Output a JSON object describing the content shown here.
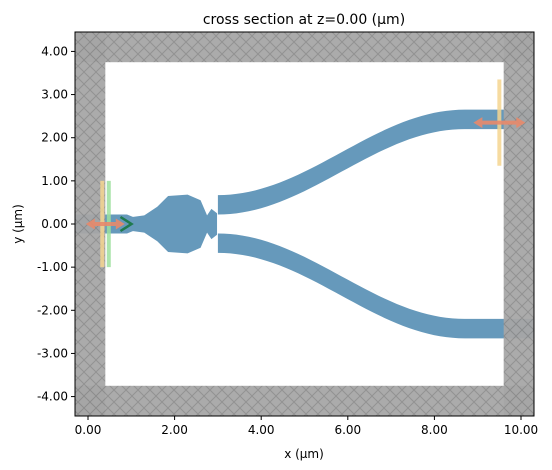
{
  "chart_data": {
    "type": "diagram",
    "title": "cross section at z=0.00 (μm)",
    "xlabel": "x (μm)",
    "ylabel": "y (μm)",
    "xlim": [
      -0.3,
      10.3
    ],
    "ylim": [
      -4.45,
      4.45
    ],
    "x_ticks": [
      {
        "value": 0,
        "label": "0.00"
      },
      {
        "value": 2,
        "label": "2.00"
      },
      {
        "value": 4,
        "label": "4.00"
      },
      {
        "value": 6,
        "label": "6.00"
      },
      {
        "value": 8,
        "label": "8.00"
      },
      {
        "value": 10,
        "label": "10.00"
      }
    ],
    "y_ticks": [
      {
        "value": 4,
        "label": "4.00"
      },
      {
        "value": 3,
        "label": "3.00"
      },
      {
        "value": 2,
        "label": "2.00"
      },
      {
        "value": 1,
        "label": "1.00"
      },
      {
        "value": 0,
        "label": "0.00"
      },
      {
        "value": -1,
        "label": "-1.00"
      },
      {
        "value": -2,
        "label": "-2.00"
      },
      {
        "value": -3,
        "label": "-3.00"
      },
      {
        "value": -4,
        "label": "-4.00"
      }
    ],
    "pml_thickness": 0.7,
    "colors": {
      "waveguide": "#6699bb",
      "pml": "#a6a6a6",
      "source": "#e8896b",
      "monitor_flux": "#f5d58f",
      "monitor_mode": "#9ee09e",
      "source_arrow": "#1f7a4d",
      "background": "#ffffff"
    },
    "components": {
      "waveguide": "split-y waveguide",
      "source": "mode source",
      "monitors": [
        "input flux monitor",
        "input mode monitor",
        "output flux monitor"
      ]
    }
  }
}
